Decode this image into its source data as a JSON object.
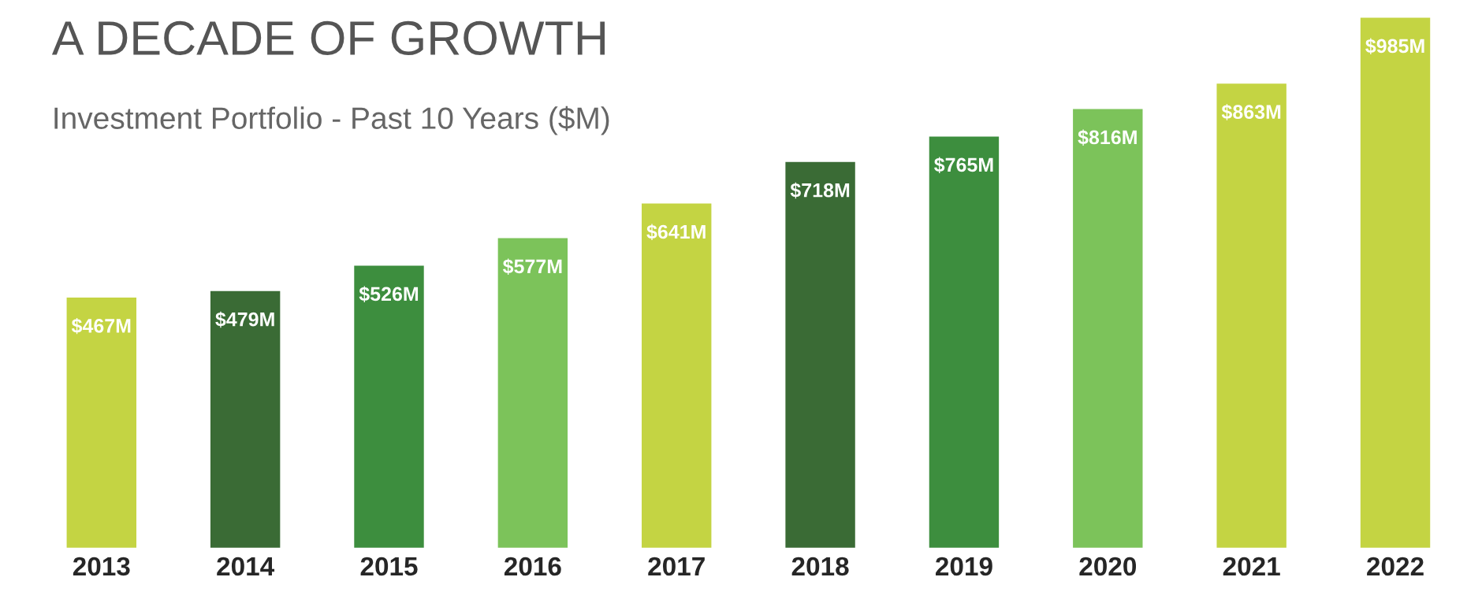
{
  "chart_data": {
    "type": "bar",
    "title": "A DECADE OF GROWTH",
    "subtitle": "Investment Portfolio - Past 10 Years ($M)",
    "categories": [
      "2013",
      "2014",
      "2015",
      "2016",
      "2017",
      "2018",
      "2019",
      "2020",
      "2021",
      "2022"
    ],
    "values": [
      467,
      479,
      526,
      577,
      641,
      718,
      765,
      816,
      863,
      985
    ],
    "value_labels": [
      "$467M",
      "$479M",
      "$526M",
      "$577M",
      "$641M",
      "$718M",
      "$765M",
      "$816M",
      "$863M",
      "$985M"
    ],
    "colors": [
      "#c4d443",
      "#3a6b35",
      "#3d8e3e",
      "#7cc35a",
      "#c4d443",
      "#3a6b35",
      "#3d8e3e",
      "#7cc35a",
      "#c4d443",
      "#c4d443"
    ],
    "grid": false,
    "legend": false
  }
}
